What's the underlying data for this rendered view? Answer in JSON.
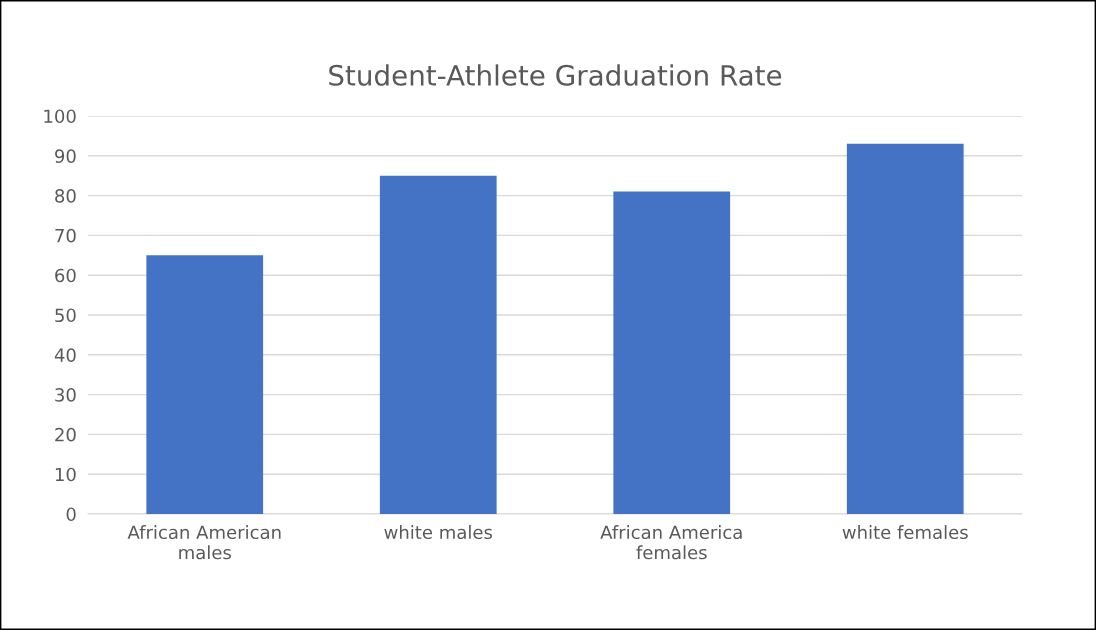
{
  "chart_data": {
    "type": "bar",
    "title": "Student-Athlete Graduation Rate",
    "categories": [
      "African American males",
      "white males",
      "African America females",
      "white females"
    ],
    "values": [
      65,
      85,
      81,
      93
    ],
    "color": "#4472c4",
    "ylim": [
      0,
      100
    ],
    "yticks": [
      0,
      10,
      20,
      30,
      40,
      50,
      60,
      70,
      80,
      90,
      100
    ],
    "grid": "y",
    "legend": false
  }
}
